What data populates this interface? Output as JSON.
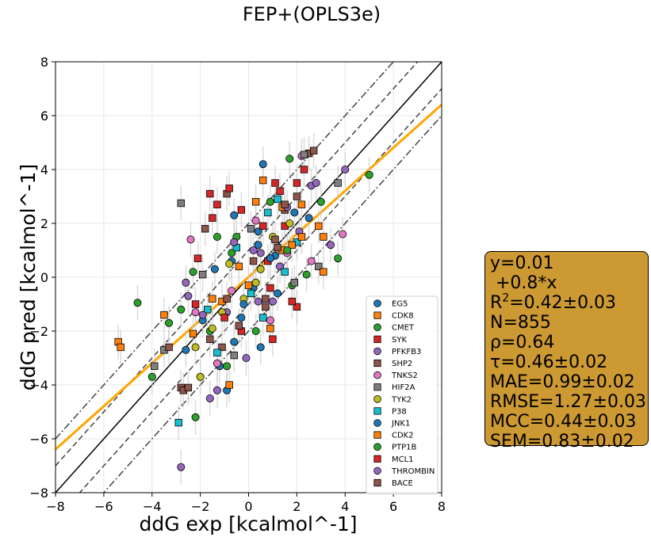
{
  "title": "FEP+(OPLS3e)",
  "chart_data": {
    "type": "scatter",
    "title": "FEP+(OPLS3e)",
    "xlabel": "ddG exp [kcalmol^-1]",
    "ylabel": "ddG pred [kcalmol^-1]",
    "xlim": [
      -8,
      8
    ],
    "ylim": [
      -8,
      8
    ],
    "xticks": [
      "−8",
      "−6",
      "−4",
      "−2",
      "0",
      "2",
      "4",
      "6",
      "8"
    ],
    "yticks": [
      "−8",
      "−6",
      "−4",
      "−2",
      "0",
      "2",
      "4",
      "6",
      "8"
    ],
    "grid": true,
    "legend_position": "lower-right",
    "reference_lines": [
      {
        "kind": "identity",
        "style": "solid",
        "color": "#000000"
      },
      {
        "kind": "offset",
        "offset": 1,
        "style": "dashed",
        "color": "#444444"
      },
      {
        "kind": "offset",
        "offset": -1,
        "style": "dashed",
        "color": "#444444"
      },
      {
        "kind": "offset",
        "offset": 2,
        "style": "dashdot",
        "color": "#444444"
      },
      {
        "kind": "offset",
        "offset": -2,
        "style": "dashdot",
        "color": "#444444"
      }
    ],
    "fit_line": {
      "intercept": 0.01,
      "slope": 0.8,
      "color": "#ffa500"
    },
    "series": [
      {
        "name": "EG5",
        "marker": "circle",
        "color": "#1f77b4",
        "points": [
          [
            0.6,
            4.2
          ],
          [
            -0.6,
            2.3
          ],
          [
            -1.2,
            -3.3
          ],
          [
            0.5,
            -2.6
          ],
          [
            -0.9,
            -4.2
          ],
          [
            -0.3,
            -1.5
          ],
          [
            0.2,
            -0.4
          ],
          [
            -0.7,
            0.6
          ],
          [
            0.4,
            1.2
          ],
          [
            1.1,
            0.8
          ]
        ]
      },
      {
        "name": "CDK8",
        "marker": "square",
        "color": "#ff7f0e",
        "points": [
          [
            -5.4,
            -2.4
          ],
          [
            -5.3,
            -2.6
          ],
          [
            -3.5,
            -1.4
          ],
          [
            0.6,
            3.6
          ],
          [
            2.9,
            1.9
          ],
          [
            3.1,
            1.5
          ],
          [
            2.2,
            2.7
          ],
          [
            -0.8,
            -4.0
          ],
          [
            1.4,
            1.0
          ],
          [
            -1.5,
            -0.8
          ]
        ]
      },
      {
        "name": "CMET",
        "marker": "circle",
        "color": "#2ca02c",
        "points": [
          [
            -4.6,
            -0.95
          ],
          [
            5.0,
            3.8
          ],
          [
            3.7,
            0.7
          ],
          [
            1.7,
            4.4
          ],
          [
            -2.2,
            -5.2
          ],
          [
            -4.0,
            -3.7
          ],
          [
            0.9,
            2.8
          ],
          [
            -0.5,
            1.5
          ],
          [
            1.8,
            -0.3
          ],
          [
            -1.6,
            -2.0
          ]
        ]
      },
      {
        "name": "SYK",
        "marker": "square",
        "color": "#d62728",
        "points": [
          [
            2.3,
            4.0
          ],
          [
            2.0,
            3.5
          ],
          [
            1.1,
            3.5
          ],
          [
            -1.3,
            2.7
          ],
          [
            2.0,
            -1.1
          ],
          [
            -0.3,
            -2.0
          ],
          [
            1.0,
            -2.3
          ],
          [
            -2.2,
            -1.0
          ],
          [
            0.8,
            0.6
          ],
          [
            1.5,
            1.9
          ]
        ]
      },
      {
        "name": "PFKFB3",
        "marker": "circle",
        "color": "#9467bd",
        "points": [
          [
            3.4,
            1.2
          ],
          [
            2.6,
            3.4
          ],
          [
            -2.8,
            -7.05
          ],
          [
            -1.6,
            -4.5
          ],
          [
            0.4,
            -0.9
          ],
          [
            -0.9,
            -1.3
          ],
          [
            1.3,
            0.4
          ],
          [
            -2.5,
            -0.7
          ],
          [
            0.2,
            1.0
          ],
          [
            2.1,
            1.7
          ]
        ]
      },
      {
        "name": "SHP2",
        "marker": "square",
        "color": "#8c564b",
        "points": [
          [
            -2.8,
            -4.1
          ],
          [
            -2.7,
            -4.2
          ],
          [
            -0.9,
            3.1
          ],
          [
            2.5,
            4.6
          ],
          [
            1.5,
            2.5
          ],
          [
            -1.8,
            1.8
          ],
          [
            0.7,
            -0.8
          ],
          [
            -0.4,
            -1.8
          ],
          [
            1.2,
            1.1
          ],
          [
            -1.1,
            -2.6
          ]
        ]
      },
      {
        "name": "TNKS2",
        "marker": "circle",
        "color": "#e377c2",
        "points": [
          [
            -2.4,
            1.4
          ],
          [
            3.9,
            1.6
          ],
          [
            2.2,
            4.5
          ],
          [
            -2.2,
            -1.3
          ],
          [
            0.3,
            2.1
          ],
          [
            -0.7,
            -0.5
          ],
          [
            1.6,
            0.9
          ],
          [
            -1.3,
            -3.2
          ],
          [
            0.9,
            -1.6
          ],
          [
            2.6,
            0.6
          ]
        ]
      },
      {
        "name": "HIF2A",
        "marker": "square",
        "color": "#7f7f7f",
        "points": [
          [
            -2.8,
            2.75
          ],
          [
            3.7,
            3.5
          ],
          [
            2.3,
            4.55
          ],
          [
            -3.9,
            -3.3
          ],
          [
            -3.5,
            -2.7
          ],
          [
            0.1,
            1.8
          ],
          [
            1.9,
            -0.2
          ],
          [
            -0.6,
            -2.9
          ],
          [
            2.9,
            0.4
          ],
          [
            -1.9,
            0.1
          ]
        ]
      },
      {
        "name": "TYK2",
        "marker": "circle",
        "color": "#bcbd22",
        "points": [
          [
            -2.2,
            -2.6
          ],
          [
            -2.0,
            -3.7
          ],
          [
            -1.1,
            -1.3
          ],
          [
            0.5,
            0.3
          ],
          [
            1.0,
            1.5
          ],
          [
            -0.2,
            -0.8
          ],
          [
            1.7,
            2.0
          ],
          [
            -1.5,
            -1.9
          ],
          [
            0.3,
            -0.2
          ],
          [
            -0.8,
            0.5
          ]
        ]
      },
      {
        "name": "P38",
        "marker": "square",
        "color": "#17becf",
        "points": [
          [
            -2.9,
            -5.4
          ],
          [
            1.2,
            2.9
          ],
          [
            0.8,
            2.4
          ],
          [
            -1.3,
            -2.8
          ],
          [
            0.1,
            -0.6
          ],
          [
            2.0,
            1.3
          ],
          [
            -0.5,
            1.1
          ],
          [
            -1.7,
            -1.2
          ],
          [
            0.6,
            -1.5
          ],
          [
            1.5,
            0.2
          ]
        ]
      },
      {
        "name": "JNK1",
        "marker": "circle",
        "color": "#1f77b4",
        "points": [
          [
            -2.6,
            -2.7
          ],
          [
            -0.2,
            -1.0
          ],
          [
            0.9,
            0.7
          ],
          [
            -1.4,
            0.3
          ],
          [
            1.9,
            2.4
          ],
          [
            -0.6,
            -2.4
          ],
          [
            0.4,
            1.7
          ],
          [
            2.5,
            2.2
          ],
          [
            -1.9,
            -1.6
          ],
          [
            1.2,
            -0.6
          ]
        ]
      },
      {
        "name": "CDK2",
        "marker": "square",
        "color": "#ff7f0e",
        "points": [
          [
            3.1,
            0.2
          ],
          [
            0.3,
            2.8
          ],
          [
            -1.1,
            -0.9
          ],
          [
            1.8,
            1.2
          ],
          [
            -0.4,
            0.4
          ],
          [
            0.9,
            -1.9
          ],
          [
            2.2,
            1.5
          ],
          [
            -2.3,
            -2.1
          ],
          [
            0.0,
            -0.3
          ],
          [
            1.4,
            2.6
          ]
        ]
      },
      {
        "name": "PTP1B",
        "marker": "circle",
        "color": "#2ca02c",
        "points": [
          [
            -2.8,
            -1.2
          ],
          [
            -2.3,
            0.2
          ],
          [
            -3.3,
            -1.7
          ],
          [
            -1.3,
            1.5
          ],
          [
            3.0,
            2.8
          ],
          [
            -0.9,
            -3.3
          ],
          [
            1.6,
            1.0
          ],
          [
            0.3,
            -2.0
          ],
          [
            -0.7,
            0.9
          ],
          [
            2.4,
            0.1
          ]
        ]
      },
      {
        "name": "MCL1",
        "marker": "square",
        "color": "#d62728",
        "points": [
          [
            -0.8,
            3.3
          ],
          [
            -1.6,
            3.1
          ],
          [
            -1.5,
            2.2
          ],
          [
            -2.1,
            0.7
          ],
          [
            1.3,
            3.2
          ],
          [
            0.9,
            -0.4
          ],
          [
            -0.3,
            2.5
          ],
          [
            1.8,
            -0.9
          ],
          [
            -1.0,
            -1.5
          ],
          [
            0.6,
            1.9
          ]
        ]
      },
      {
        "name": "THROMBIN",
        "marker": "circle",
        "color": "#9467bd",
        "points": [
          [
            4.0,
            4.0
          ],
          [
            2.8,
            3.5
          ],
          [
            -2.6,
            -0.2
          ],
          [
            -1.3,
            -4.2
          ],
          [
            -0.1,
            -3.0
          ],
          [
            0.5,
            0.9
          ],
          [
            1.6,
            2.6
          ],
          [
            -1.9,
            -1.4
          ],
          [
            1.0,
            -0.9
          ],
          [
            -0.6,
            1.3
          ]
        ]
      },
      {
        "name": "BACE",
        "marker": "square",
        "color": "#8c564b",
        "points": [
          [
            2.7,
            4.7
          ],
          [
            2.0,
            3.0
          ],
          [
            1.5,
            2.7
          ],
          [
            -2.5,
            -4.1
          ],
          [
            -3.3,
            -2.6
          ],
          [
            0.2,
            0.6
          ],
          [
            -0.9,
            -0.8
          ],
          [
            1.1,
            1.4
          ],
          [
            -1.6,
            -2.3
          ],
          [
            0.7,
            -1.1
          ]
        ]
      }
    ]
  },
  "stats_box": {
    "line1": "y=0.01",
    "line2": " +0.8*x",
    "r2_prefix": "R",
    "r2_sup": "2",
    "r2_value": "=0.42±0.03",
    "n": "N=855",
    "rho": "ρ=0.64",
    "tau": "τ=0.46±0.02",
    "mae": "MAE=0.99±0.02",
    "rmse": "RMSE=1.27±0.03",
    "mcc": "MCC=0.44±0.03",
    "sem": "SEM=0.83±0.02",
    "background": "#cc9933"
  }
}
